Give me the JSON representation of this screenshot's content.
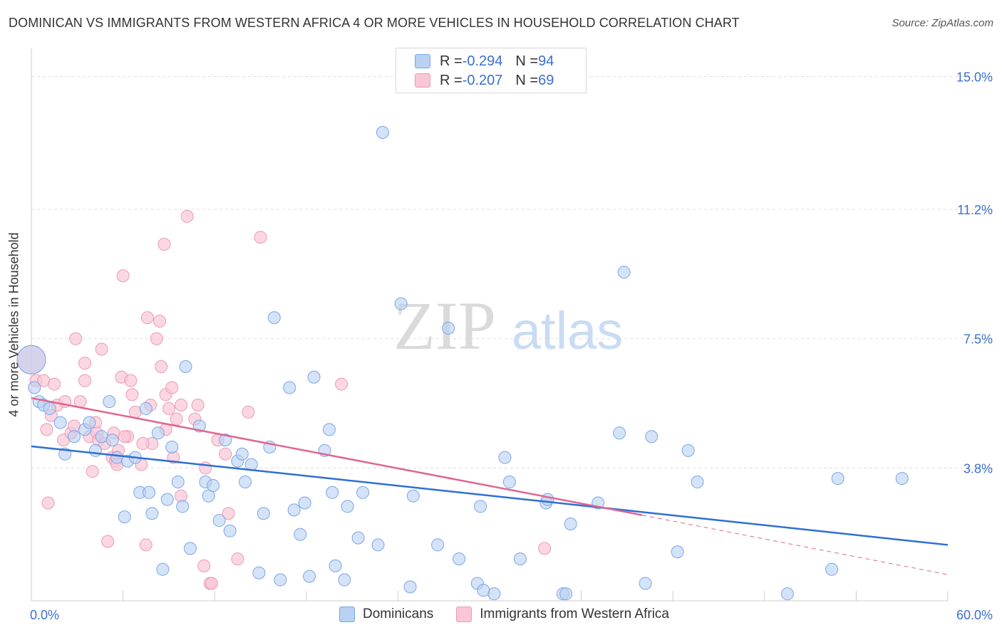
{
  "title": "DOMINICAN VS IMMIGRANTS FROM WESTERN AFRICA 4 OR MORE VEHICLES IN HOUSEHOLD CORRELATION CHART",
  "source": "Source: ZipAtlas.com",
  "watermark": {
    "zip": "ZIP",
    "atlas": "atlas"
  },
  "legend_top": [
    {
      "r_label": "R = ",
      "r_value": "-0.294",
      "n_label": "N = ",
      "n_value": "94"
    },
    {
      "r_label": "R = ",
      "r_value": "-0.207",
      "n_label": "N = ",
      "n_value": "69"
    }
  ],
  "legend_bottom": [
    "Dominicans",
    "Immigrants from Western Africa"
  ],
  "colors": {
    "blue_fill": "#b9d1f3",
    "blue_stroke": "#7aa6e6",
    "blue_line": "#2e6fd4",
    "pink_fill": "#f9c6d6",
    "pink_stroke": "#ec9ab5",
    "pink_line": "#e0658f",
    "tick_label": "#3a6fd0",
    "grid": "#dddddd"
  },
  "chart_data": {
    "type": "scatter",
    "title": "DOMINICAN VS IMMIGRANTS FROM WESTERN AFRICA 4 OR MORE VEHICLES IN HOUSEHOLD CORRELATION CHART",
    "xlabel": "",
    "ylabel": "4 or more Vehicles in Household",
    "xlim": [
      0,
      60
    ],
    "ylim": [
      0,
      15.6
    ],
    "x_tick_labels": [
      "0.0%",
      "60.0%"
    ],
    "y_ticks": [
      3.8,
      7.5,
      11.2,
      15.0
    ],
    "y_tick_labels": [
      "3.8%",
      "7.5%",
      "11.2%",
      "15.0%"
    ],
    "grid": "horizontal dashed",
    "legend_position": "top-center and bottom",
    "series": [
      {
        "name": "Dominicans",
        "r": -0.294,
        "n": 94,
        "trend": {
          "x": [
            0,
            60
          ],
          "y": [
            4.42,
            1.6
          ]
        },
        "points": [
          [
            0.0,
            6.9
          ],
          [
            0.2,
            6.1
          ],
          [
            0.5,
            5.7
          ],
          [
            0.8,
            5.6
          ],
          [
            1.2,
            5.5
          ],
          [
            1.9,
            5.1
          ],
          [
            2.2,
            4.2
          ],
          [
            2.8,
            4.7
          ],
          [
            3.5,
            4.9
          ],
          [
            3.8,
            5.1
          ],
          [
            4.2,
            4.3
          ],
          [
            4.6,
            4.7
          ],
          [
            5.1,
            5.7
          ],
          [
            5.3,
            4.6
          ],
          [
            5.6,
            4.1
          ],
          [
            6.1,
            2.4
          ],
          [
            6.3,
            4.0
          ],
          [
            6.8,
            4.1
          ],
          [
            7.1,
            3.1
          ],
          [
            7.5,
            5.5
          ],
          [
            7.7,
            3.1
          ],
          [
            7.9,
            2.5
          ],
          [
            8.3,
            4.8
          ],
          [
            8.6,
            0.9
          ],
          [
            8.9,
            2.9
          ],
          [
            9.2,
            4.4
          ],
          [
            9.6,
            3.4
          ],
          [
            9.9,
            2.7
          ],
          [
            10.1,
            6.7
          ],
          [
            10.4,
            1.5
          ],
          [
            11.0,
            5.0
          ],
          [
            11.4,
            3.4
          ],
          [
            11.6,
            3.0
          ],
          [
            11.9,
            3.3
          ],
          [
            12.3,
            2.3
          ],
          [
            12.7,
            4.6
          ],
          [
            13.0,
            2.0
          ],
          [
            13.5,
            4.0
          ],
          [
            13.8,
            4.2
          ],
          [
            14.0,
            3.4
          ],
          [
            14.4,
            3.9
          ],
          [
            14.9,
            0.8
          ],
          [
            15.2,
            2.5
          ],
          [
            15.6,
            4.4
          ],
          [
            15.9,
            8.1
          ],
          [
            16.3,
            0.6
          ],
          [
            16.9,
            6.1
          ],
          [
            17.2,
            2.6
          ],
          [
            17.6,
            1.9
          ],
          [
            17.9,
            2.8
          ],
          [
            18.2,
            0.7
          ],
          [
            18.5,
            6.4
          ],
          [
            19.2,
            4.3
          ],
          [
            19.5,
            4.9
          ],
          [
            19.7,
            3.1
          ],
          [
            19.9,
            1.0
          ],
          [
            20.5,
            0.6
          ],
          [
            20.7,
            2.7
          ],
          [
            21.4,
            1.8
          ],
          [
            21.7,
            3.1
          ],
          [
            22.7,
            1.6
          ],
          [
            23.0,
            13.4
          ],
          [
            24.2,
            8.5
          ],
          [
            24.8,
            0.4
          ],
          [
            25.0,
            3.0
          ],
          [
            26.6,
            1.6
          ],
          [
            27.3,
            7.8
          ],
          [
            28.0,
            1.2
          ],
          [
            29.2,
            0.5
          ],
          [
            29.4,
            2.7
          ],
          [
            29.6,
            0.3
          ],
          [
            30.3,
            0.2
          ],
          [
            31.0,
            4.1
          ],
          [
            31.3,
            3.4
          ],
          [
            32.0,
            1.2
          ],
          [
            33.7,
            2.8
          ],
          [
            33.8,
            2.9
          ],
          [
            34.8,
            0.2
          ],
          [
            35.0,
            0.2
          ],
          [
            35.3,
            2.2
          ],
          [
            37.1,
            2.8
          ],
          [
            38.5,
            4.8
          ],
          [
            38.8,
            9.4
          ],
          [
            40.2,
            0.5
          ],
          [
            40.6,
            4.7
          ],
          [
            42.3,
            1.4
          ],
          [
            43.0,
            4.3
          ],
          [
            43.6,
            3.4
          ],
          [
            49.5,
            0.2
          ],
          [
            52.4,
            0.9
          ],
          [
            52.8,
            3.5
          ],
          [
            57.0,
            3.5
          ]
        ]
      },
      {
        "name": "Immigrants from Western Africa",
        "r": -0.207,
        "n": 69,
        "trend": {
          "x": [
            0,
            40
          ],
          "y": [
            5.8,
            2.45
          ]
        },
        "trend_dashed": {
          "x": [
            40,
            60
          ],
          "y": [
            2.45,
            0.75
          ]
        },
        "points": [
          [
            0.0,
            6.9
          ],
          [
            0.3,
            6.3
          ],
          [
            0.8,
            6.3
          ],
          [
            1.0,
            4.9
          ],
          [
            1.1,
            2.8
          ],
          [
            1.3,
            5.3
          ],
          [
            1.5,
            6.2
          ],
          [
            1.7,
            5.6
          ],
          [
            2.1,
            4.6
          ],
          [
            2.2,
            5.7
          ],
          [
            2.6,
            4.8
          ],
          [
            2.8,
            5.0
          ],
          [
            2.9,
            7.5
          ],
          [
            3.2,
            5.7
          ],
          [
            3.5,
            6.3
          ],
          [
            3.5,
            6.8
          ],
          [
            3.8,
            4.7
          ],
          [
            4.0,
            3.7
          ],
          [
            4.2,
            5.1
          ],
          [
            4.3,
            4.8
          ],
          [
            4.4,
            4.6
          ],
          [
            4.6,
            7.2
          ],
          [
            4.8,
            4.5
          ],
          [
            5.0,
            1.7
          ],
          [
            5.3,
            4.1
          ],
          [
            5.4,
            4.8
          ],
          [
            5.5,
            4.0
          ],
          [
            5.6,
            3.9
          ],
          [
            5.7,
            4.3
          ],
          [
            5.9,
            6.4
          ],
          [
            6.0,
            9.3
          ],
          [
            6.3,
            4.7
          ],
          [
            6.5,
            6.3
          ],
          [
            6.6,
            5.9
          ],
          [
            6.8,
            5.4
          ],
          [
            7.2,
            3.9
          ],
          [
            7.5,
            1.6
          ],
          [
            7.6,
            8.1
          ],
          [
            7.8,
            5.6
          ],
          [
            7.9,
            4.5
          ],
          [
            8.2,
            7.5
          ],
          [
            8.4,
            8.0
          ],
          [
            8.5,
            6.7
          ],
          [
            8.7,
            10.2
          ],
          [
            8.8,
            5.9
          ],
          [
            9.0,
            5.5
          ],
          [
            9.2,
            6.1
          ],
          [
            9.3,
            4.1
          ],
          [
            9.5,
            5.2
          ],
          [
            9.8,
            5.6
          ],
          [
            9.8,
            3.0
          ],
          [
            10.2,
            11.0
          ],
          [
            10.7,
            5.2
          ],
          [
            10.9,
            5.6
          ],
          [
            11.3,
            1.0
          ],
          [
            11.4,
            3.8
          ],
          [
            11.7,
            0.5
          ],
          [
            11.8,
            0.5
          ],
          [
            12.2,
            4.6
          ],
          [
            12.7,
            4.2
          ],
          [
            12.9,
            2.5
          ],
          [
            13.5,
            1.2
          ],
          [
            14.2,
            5.4
          ],
          [
            15.0,
            10.4
          ],
          [
            20.3,
            6.2
          ],
          [
            33.6,
            1.5
          ],
          [
            8.8,
            4.9
          ],
          [
            7.3,
            4.5
          ],
          [
            6.1,
            4.7
          ]
        ]
      }
    ]
  }
}
